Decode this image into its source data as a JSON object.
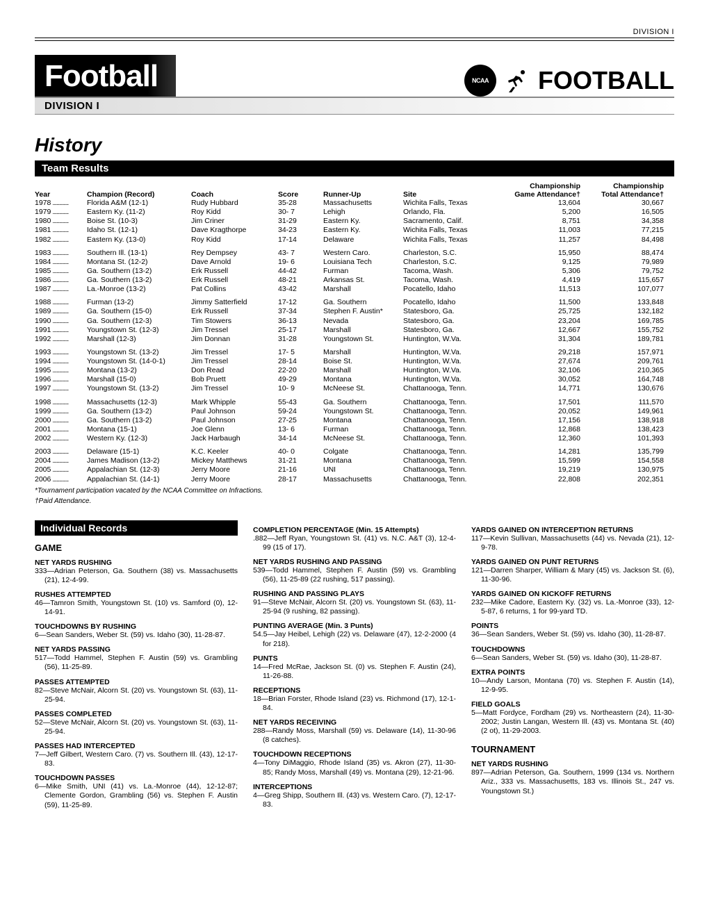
{
  "header_tag": "DIVISION I",
  "title": "Football",
  "subtitle": "DIVISION I",
  "logo_text": "FOOTBALL",
  "history": "History",
  "team_results_label": "Team Results",
  "individual_records_label": "Individual Records",
  "footnote1": "*Tournament participation vacated by the NCAA Committee on Infractions.",
  "footnote2": "†Paid Attendance.",
  "columns": {
    "year": "Year",
    "champion": "Champion (Record)",
    "coach": "Coach",
    "score": "Score",
    "runner": "Runner-Up",
    "site": "Site",
    "att1a": "Championship",
    "att1b": "Game Attendance†",
    "att2a": "Championship",
    "att2b": "Total Attendance†"
  },
  "groups": [
    [
      {
        "year": "1978",
        "champ": "Florida A&M (12-1)",
        "coach": "Rudy Hubbard",
        "score": "35-28",
        "runner": "Massachusetts",
        "site": "Wichita Falls, Texas",
        "a1": "13,604",
        "a2": "30,667"
      },
      {
        "year": "1979",
        "champ": "Eastern Ky. (11-2)",
        "coach": "Roy Kidd",
        "score": "30- 7",
        "runner": "Lehigh",
        "site": "Orlando, Fla.",
        "a1": "5,200",
        "a2": "16,505"
      },
      {
        "year": "1980",
        "champ": "Boise St. (10-3)",
        "coach": "Jim Criner",
        "score": "31-29",
        "runner": "Eastern Ky.",
        "site": "Sacramento, Calif.",
        "a1": "8,751",
        "a2": "34,358"
      },
      {
        "year": "1981",
        "champ": "Idaho St. (12-1)",
        "coach": "Dave Kragthorpe",
        "score": "34-23",
        "runner": "Eastern Ky.",
        "site": "Wichita Falls, Texas",
        "a1": "11,003",
        "a2": "77,215"
      },
      {
        "year": "1982",
        "champ": "Eastern Ky. (13-0)",
        "coach": "Roy Kidd",
        "score": "17-14",
        "runner": "Delaware",
        "site": "Wichita Falls, Texas",
        "a1": "11,257",
        "a2": "84,498"
      }
    ],
    [
      {
        "year": "1983",
        "champ": "Southern Ill. (13-1)",
        "coach": "Rey Dempsey",
        "score": "43- 7",
        "runner": "Western Caro.",
        "site": "Charleston, S.C.",
        "a1": "15,950",
        "a2": "88,474"
      },
      {
        "year": "1984",
        "champ": "Montana St. (12-2)",
        "coach": "Dave Arnold",
        "score": "19- 6",
        "runner": "Louisiana Tech",
        "site": "Charleston, S.C.",
        "a1": "9,125",
        "a2": "79,989"
      },
      {
        "year": "1985",
        "champ": "Ga. Southern (13-2)",
        "coach": "Erk Russell",
        "score": "44-42",
        "runner": "Furman",
        "site": "Tacoma, Wash.",
        "a1": "5,306",
        "a2": "79,752"
      },
      {
        "year": "1986",
        "champ": "Ga. Southern (13-2)",
        "coach": "Erk Russell",
        "score": "48-21",
        "runner": "Arkansas St.",
        "site": "Tacoma, Wash.",
        "a1": "4,419",
        "a2": "115,657"
      },
      {
        "year": "1987",
        "champ": "La.-Monroe (13-2)",
        "coach": "Pat Collins",
        "score": "43-42",
        "runner": "Marshall",
        "site": "Pocatello, Idaho",
        "a1": "11,513",
        "a2": "107,077"
      }
    ],
    [
      {
        "year": "1988",
        "champ": "Furman (13-2)",
        "coach": "Jimmy Satterfield",
        "score": "17-12",
        "runner": "Ga. Southern",
        "site": "Pocatello, Idaho",
        "a1": "11,500",
        "a2": "133,848"
      },
      {
        "year": "1989",
        "champ": "Ga. Southern (15-0)",
        "coach": "Erk Russell",
        "score": "37-34",
        "runner": "Stephen F. Austin*",
        "site": "Statesboro, Ga.",
        "a1": "25,725",
        "a2": "132,182"
      },
      {
        "year": "1990",
        "champ": "Ga. Southern (12-3)",
        "coach": "Tim Stowers",
        "score": "36-13",
        "runner": "Nevada",
        "site": "Statesboro, Ga.",
        "a1": "23,204",
        "a2": "169,785"
      },
      {
        "year": "1991",
        "champ": "Youngstown St. (12-3)",
        "coach": "Jim Tressel",
        "score": "25-17",
        "runner": "Marshall",
        "site": "Statesboro, Ga.",
        "a1": "12,667",
        "a2": "155,752"
      },
      {
        "year": "1992",
        "champ": "Marshall (12-3)",
        "coach": "Jim Donnan",
        "score": "31-28",
        "runner": "Youngstown St.",
        "site": "Huntington, W.Va.",
        "a1": "31,304",
        "a2": "189,781"
      }
    ],
    [
      {
        "year": "1993",
        "champ": "Youngstown St. (13-2)",
        "coach": "Jim Tressel",
        "score": "17- 5",
        "runner": "Marshall",
        "site": "Huntington, W.Va.",
        "a1": "29,218",
        "a2": "157,971"
      },
      {
        "year": "1994",
        "champ": "Youngstown St. (14-0-1)",
        "coach": "Jim Tressel",
        "score": "28-14",
        "runner": "Boise St.",
        "site": "Huntington, W.Va.",
        "a1": "27,674",
        "a2": "209,761"
      },
      {
        "year": "1995",
        "champ": "Montana (13-2)",
        "coach": "Don Read",
        "score": "22-20",
        "runner": "Marshall",
        "site": "Huntington, W.Va.",
        "a1": "32,106",
        "a2": "210,365"
      },
      {
        "year": "1996",
        "champ": "Marshall (15-0)",
        "coach": "Bob Pruett",
        "score": "49-29",
        "runner": "Montana",
        "site": "Huntington, W.Va.",
        "a1": "30,052",
        "a2": "164,748"
      },
      {
        "year": "1997",
        "champ": "Youngstown St. (13-2)",
        "coach": "Jim Tressel",
        "score": "10- 9",
        "runner": "McNeese St.",
        "site": "Chattanooga, Tenn.",
        "a1": "14,771",
        "a2": "130,676"
      }
    ],
    [
      {
        "year": "1998",
        "champ": "Massachusetts (12-3)",
        "coach": "Mark Whipple",
        "score": "55-43",
        "runner": "Ga. Southern",
        "site": "Chattanooga, Tenn.",
        "a1": "17,501",
        "a2": "111,570"
      },
      {
        "year": "1999",
        "champ": "Ga. Southern (13-2)",
        "coach": "Paul Johnson",
        "score": "59-24",
        "runner": "Youngstown St.",
        "site": "Chattanooga, Tenn.",
        "a1": "20,052",
        "a2": "149,961"
      },
      {
        "year": "2000",
        "champ": "Ga. Southern (13-2)",
        "coach": "Paul Johnson",
        "score": "27-25",
        "runner": "Montana",
        "site": "Chattanooga, Tenn.",
        "a1": "17,156",
        "a2": "138,918"
      },
      {
        "year": "2001",
        "champ": "Montana (15-1)",
        "coach": "Joe Glenn",
        "score": "13- 6",
        "runner": "Furman",
        "site": "Chattanooga, Tenn.",
        "a1": "12,868",
        "a2": "138,423"
      },
      {
        "year": "2002",
        "champ": "Western Ky. (12-3)",
        "coach": "Jack Harbaugh",
        "score": "34-14",
        "runner": "McNeese St.",
        "site": "Chattanooga, Tenn.",
        "a1": "12,360",
        "a2": "101,393"
      }
    ],
    [
      {
        "year": "2003",
        "champ": "Delaware (15-1)",
        "coach": "K.C. Keeler",
        "score": "40- 0",
        "runner": "Colgate",
        "site": "Chattanooga, Tenn.",
        "a1": "14,281",
        "a2": "135,799"
      },
      {
        "year": "2004",
        "champ": "James Madison (13-2)",
        "coach": "Mickey Matthews",
        "score": "31-21",
        "runner": "Montana",
        "site": "Chattanooga, Tenn.",
        "a1": "15,599",
        "a2": "154,558"
      },
      {
        "year": "2005",
        "champ": "Appalachian St. (12-3)",
        "coach": "Jerry Moore",
        "score": "21-16",
        "runner": "UNI",
        "site": "Chattanooga, Tenn.",
        "a1": "19,219",
        "a2": "130,975"
      },
      {
        "year": "2006",
        "champ": "Appalachian St. (14-1)",
        "coach": "Jerry Moore",
        "score": "28-17",
        "runner": "Massachusetts",
        "site": "Chattanooga, Tenn.",
        "a1": "22,808",
        "a2": "202,351"
      }
    ]
  ],
  "game_label": "GAME",
  "tournament_label": "TOURNAMENT",
  "records_col1": [
    {
      "h": "NET YARDS RUSHING",
      "b": "333—Adrian Peterson, Ga. Southern (38) vs. Massachusetts (21), 12-4-99."
    },
    {
      "h": "RUSHES ATTEMPTED",
      "b": "46—Tamron Smith, Youngstown St. (10) vs. Samford (0), 12-14-91."
    },
    {
      "h": "TOUCHDOWNS BY RUSHING",
      "b": "6—Sean Sanders, Weber St. (59) vs. Idaho (30), 11-28-87."
    },
    {
      "h": "NET YARDS PASSING",
      "b": "517—Todd Hammel, Stephen F. Austin (59) vs. Grambling (56), 11-25-89."
    },
    {
      "h": "PASSES ATTEMPTED",
      "b": "82—Steve McNair, Alcorn St. (20) vs. Youngstown St. (63), 11-25-94."
    },
    {
      "h": "PASSES COMPLETED",
      "b": "52—Steve McNair, Alcorn St. (20) vs. Youngstown St. (63), 11-25-94."
    },
    {
      "h": "PASSES HAD INTERCEPTED",
      "b": "7—Jeff Gilbert, Western Caro. (7) vs. Southern Ill. (43), 12-17-83."
    },
    {
      "h": "TOUCHDOWN PASSES",
      "b": "6—Mike Smith, UNI (41) vs. La.-Monroe (44), 12-12-87; Clemente Gordon, Grambling (56) vs. Stephen F. Austin (59), 11-25-89."
    }
  ],
  "records_col2": [
    {
      "h": "COMPLETION PERCENTAGE (Min. 15 Attempts)",
      "b": ".882—Jeff Ryan, Youngstown St. (41) vs. N.C. A&T (3), 12-4-99 (15 of 17)."
    },
    {
      "h": "NET YARDS RUSHING AND PASSING",
      "b": "539—Todd Hammel, Stephen F. Austin (59) vs. Grambling (56), 11-25-89 (22 rushing, 517 passing)."
    },
    {
      "h": "RUSHING AND PASSING PLAYS",
      "b": "91—Steve McNair, Alcorn St. (20) vs. Youngstown St. (63), 11-25-94 (9 rushing, 82 passing)."
    },
    {
      "h": "PUNTING AVERAGE (Min. 3 Punts)",
      "b": "54.5—Jay Heibel, Lehigh (22) vs. Delaware (47), 12-2-2000 (4 for 218)."
    },
    {
      "h": "PUNTS",
      "b": "14—Fred McRae, Jackson St. (0) vs. Stephen F. Austin (24), 11-26-88."
    },
    {
      "h": "RECEPTIONS",
      "b": "18—Brian Forster, Rhode Island (23) vs. Richmond (17), 12-1-84."
    },
    {
      "h": "NET YARDS RECEIVING",
      "b": "288—Randy Moss, Marshall (59) vs. Delaware (14), 11-30-96 (8 catches)."
    },
    {
      "h": "TOUCHDOWN RECEPTIONS",
      "b": "4—Tony DiMaggio, Rhode Island (35) vs. Akron (27), 11-30-85; Randy Moss, Marshall (49) vs. Montana (29), 12-21-96."
    },
    {
      "h": "INTERCEPTIONS",
      "b": "4—Greg Shipp, Southern Ill. (43) vs. Western Caro. (7), 12-17-83."
    }
  ],
  "records_col3": [
    {
      "h": "YARDS GAINED ON INTERCEPTION RETURNS",
      "b": "117—Kevin Sullivan, Massachusetts (44) vs. Nevada (21), 12-9-78."
    },
    {
      "h": "YARDS GAINED ON PUNT RETURNS",
      "b": "121—Darren Sharper, William & Mary (45) vs. Jackson St. (6), 11-30-96."
    },
    {
      "h": "YARDS GAINED ON KICKOFF RETURNS",
      "b": "232—Mike Cadore, Eastern Ky. (32) vs. La.-Monroe (33), 12-5-87, 6 returns, 1 for 99-yard TD."
    },
    {
      "h": "POINTS",
      "b": "36—Sean Sanders, Weber St. (59) vs. Idaho (30), 11-28-87."
    },
    {
      "h": "TOUCHDOWNS",
      "b": "6—Sean Sanders, Weber St. (59) vs. Idaho (30), 11-28-87."
    },
    {
      "h": "EXTRA POINTS",
      "b": "10—Andy Larson, Montana (70) vs. Stephen F. Austin (14), 12-9-95."
    },
    {
      "h": "FIELD GOALS",
      "b": "5—Matt Fordyce, Fordham (29) vs. Northeastern (24), 11-30-2002; Justin Langan, Western Ill. (43) vs. Montana St. (40) (2 ot), 11-29-2003."
    }
  ],
  "records_tourn": [
    {
      "h": "NET YARDS RUSHING",
      "b": "897—Adrian Peterson, Ga. Southern, 1999 (134 vs. Northern Ariz., 333 vs. Massachusetts, 183 vs. Illinois St., 247 vs. Youngstown St.)"
    }
  ]
}
